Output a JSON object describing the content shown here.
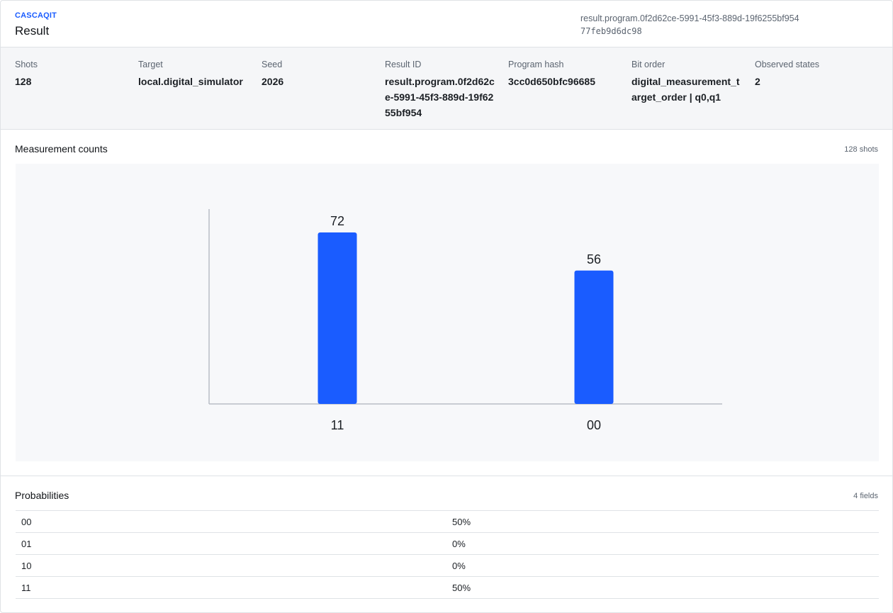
{
  "header": {
    "brand": "CASCAQIT",
    "title": "Result",
    "result_id": "result.program.0f2d62ce-5991-45f3-889d-19f6255bf954",
    "hash": "77feb9d6dc98"
  },
  "meta": [
    {
      "label": "Shots",
      "value": "128"
    },
    {
      "label": "Target",
      "value": "local.digital_simulator"
    },
    {
      "label": "Seed",
      "value": "2026"
    },
    {
      "label": "Result ID",
      "value": "result.program.0f2d62ce-5991-45f3-889d-19f6255bf954"
    },
    {
      "label": "Program hash",
      "value": "3cc0d650bfc96685"
    },
    {
      "label": "Bit order",
      "value": "digital_measurement_target_order | q0,q1"
    },
    {
      "label": "Observed states",
      "value": "2"
    }
  ],
  "counts_section": {
    "title": "Measurement counts",
    "aside": "128 shots"
  },
  "chart_data": {
    "type": "bar",
    "categories": [
      "11",
      "00"
    ],
    "values": [
      72,
      56
    ],
    "ylim": [
      0,
      72
    ],
    "grid": false,
    "bar_color": "#1a5cff"
  },
  "prob_section": {
    "title": "Probabilities",
    "aside": "4 fields",
    "rows": [
      {
        "state": "00",
        "prob": "50%"
      },
      {
        "state": "01",
        "prob": "0%"
      },
      {
        "state": "10",
        "prob": "0%"
      },
      {
        "state": "11",
        "prob": "50%"
      }
    ]
  }
}
